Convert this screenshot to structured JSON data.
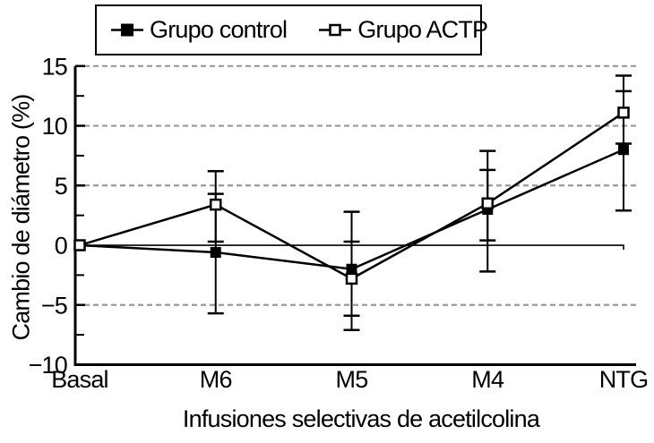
{
  "chart_data": {
    "type": "line",
    "title": "",
    "xlabel": "Infusiones selectivas de acetilcolina",
    "ylabel": "Cambio de diámetro (%)",
    "categories": [
      "Basal",
      "M6",
      "M5",
      "M4",
      "NTG"
    ],
    "ylim": [
      -10,
      15
    ],
    "yticks": [
      {
        "value": 15,
        "label": "15",
        "grid": true,
        "zero": false
      },
      {
        "value": 10,
        "label": "10",
        "grid": true,
        "zero": false
      },
      {
        "value": 5,
        "label": "5",
        "grid": true,
        "zero": false
      },
      {
        "value": 0,
        "label": "0",
        "grid": false,
        "zero": true
      },
      {
        "value": -5,
        "label": "−5",
        "grid": true,
        "zero": false
      },
      {
        "value": -10,
        "label": "−10",
        "grid": false,
        "zero": false
      }
    ],
    "minor_ticks": [
      12.5,
      7.5,
      2.5,
      -2.5,
      -7.5
    ],
    "grid_on": true,
    "grid_color": "#999999",
    "axis_color": "#000000",
    "legend_position": "top",
    "series": [
      {
        "name": "Grupo control",
        "marker": "filled-square",
        "color": "#000000",
        "values": [
          0,
          -0.6,
          -2.0,
          3.0,
          8.0
        ],
        "error_hi": [
          null,
          4.3,
          2.8,
          7.9,
          12.9
        ],
        "error_lo": [
          null,
          -5.7,
          -7.1,
          -2.2,
          2.9
        ]
      },
      {
        "name": "Grupo ACTP",
        "marker": "open-square",
        "color": "#000000",
        "values": [
          0,
          3.4,
          -2.8,
          3.5,
          11.1
        ],
        "error_hi": [
          null,
          6.2,
          0.3,
          6.3,
          14.2
        ],
        "error_lo": [
          null,
          0.3,
          -5.9,
          0.4,
          8.5
        ]
      }
    ]
  }
}
